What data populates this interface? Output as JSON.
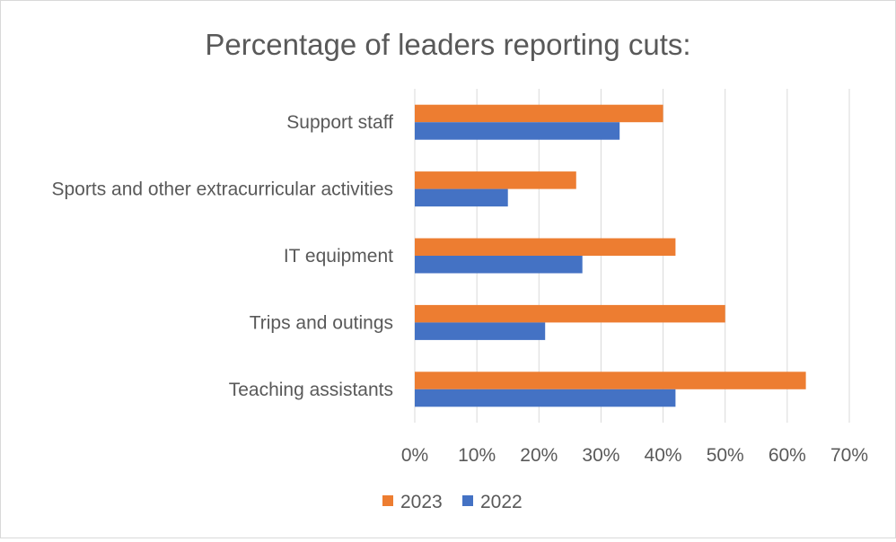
{
  "chart_data": {
    "type": "bar",
    "orientation": "horizontal",
    "title": "Percentage of leaders reporting cuts:",
    "categories": [
      "Teaching assistants",
      "Trips and outings",
      "IT equipment",
      "Sports and other extracurricular activities",
      "Support staff"
    ],
    "series": [
      {
        "name": "2023",
        "color": "#ED7D31",
        "values": [
          63,
          50,
          42,
          26,
          40
        ]
      },
      {
        "name": "2022",
        "color": "#4472C4",
        "values": [
          42,
          21,
          27,
          15,
          33
        ]
      }
    ],
    "xlim": [
      0,
      70
    ],
    "xticks": [
      "0%",
      "10%",
      "20%",
      "30%",
      "40%",
      "50%",
      "60%",
      "70%"
    ],
    "grid": true,
    "legend_position": "bottom"
  }
}
